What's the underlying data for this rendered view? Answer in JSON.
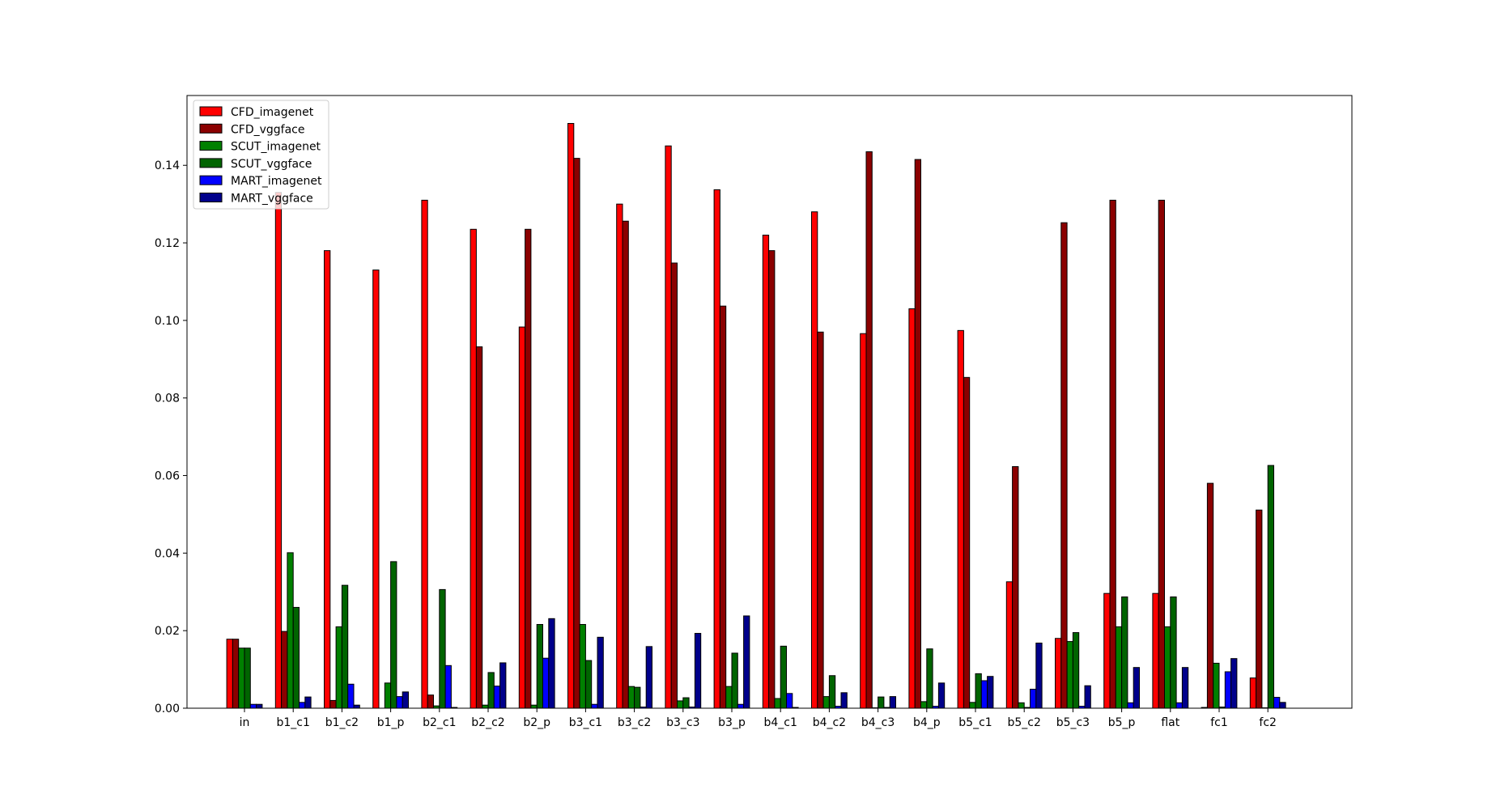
{
  "chart_data": {
    "type": "bar",
    "categories": [
      "in",
      "b1_c1",
      "b1_c2",
      "b1_p",
      "b2_c1",
      "b2_c2",
      "b2_p",
      "b3_c1",
      "b3_c2",
      "b3_c3",
      "b3_p",
      "b4_c1",
      "b4_c2",
      "b4_c3",
      "b4_p",
      "b5_c1",
      "b5_c2",
      "b5_c3",
      "b5_p",
      "flat",
      "fc1",
      "fc2"
    ],
    "series": [
      {
        "name": "CFD_imagenet",
        "color": "#ff0000",
        "values": [
          0.0178,
          0.133,
          0.118,
          0.113,
          0.131,
          0.1235,
          0.0983,
          0.1508,
          0.13,
          0.145,
          0.1337,
          0.122,
          0.128,
          0.0966,
          0.103,
          0.0974,
          0.0326,
          0.018,
          0.0296,
          0.0296,
          0.0002,
          0.0078
        ]
      },
      {
        "name": "CFD_vggface",
        "color": "#8b0000",
        "values": [
          0.0178,
          0.0198,
          0.002,
          0.0,
          0.0034,
          0.0932,
          0.1235,
          0.1418,
          0.1256,
          0.1148,
          0.1037,
          0.118,
          0.097,
          0.1435,
          0.1415,
          0.0853,
          0.0623,
          0.1252,
          0.131,
          0.131,
          0.058,
          0.0511
        ]
      },
      {
        "name": "SCUT_imagenet",
        "color": "#008000",
        "values": [
          0.0155,
          0.0401,
          0.021,
          0.0065,
          0.0006,
          0.0008,
          0.0008,
          0.0216,
          0.0056,
          0.0019,
          0.0056,
          0.0025,
          0.003,
          0.0001,
          0.0017,
          0.0015,
          0.0014,
          0.0172,
          0.021,
          0.021,
          0.0116,
          0.0001
        ]
      },
      {
        "name": "SCUT_vggface",
        "color": "#006400",
        "values": [
          0.0155,
          0.026,
          0.0317,
          0.0378,
          0.0306,
          0.0092,
          0.0216,
          0.0123,
          0.0054,
          0.0027,
          0.0142,
          0.016,
          0.0084,
          0.0029,
          0.0153,
          0.0089,
          0.0002,
          0.0195,
          0.0287,
          0.0287,
          0.0003,
          0.0626
        ]
      },
      {
        "name": "MART_imagenet",
        "color": "#0000ff",
        "values": [
          0.001,
          0.0015,
          0.0062,
          0.003,
          0.011,
          0.0057,
          0.0129,
          0.001,
          0.0003,
          0.0003,
          0.001,
          0.0038,
          0.0005,
          0.0002,
          0.0005,
          0.0071,
          0.0049,
          0.0005,
          0.0014,
          0.0014,
          0.0094,
          0.0028
        ]
      },
      {
        "name": "MART_vggface",
        "color": "#00008b",
        "values": [
          0.001,
          0.0029,
          0.0008,
          0.0042,
          0.0002,
          0.0117,
          0.0231,
          0.0183,
          0.0159,
          0.0193,
          0.0238,
          0.0002,
          0.004,
          0.003,
          0.0065,
          0.0082,
          0.0168,
          0.0058,
          0.0105,
          0.0105,
          0.0128,
          0.0015
        ]
      }
    ],
    "yticks": [
      "0.00",
      "0.02",
      "0.04",
      "0.06",
      "0.08",
      "0.10",
      "0.12",
      "0.14"
    ],
    "title": "",
    "xlabel": "",
    "ylabel": "",
    "ylim": [
      0,
      0.158
    ],
    "grid": false,
    "legend_position": "top-left"
  }
}
